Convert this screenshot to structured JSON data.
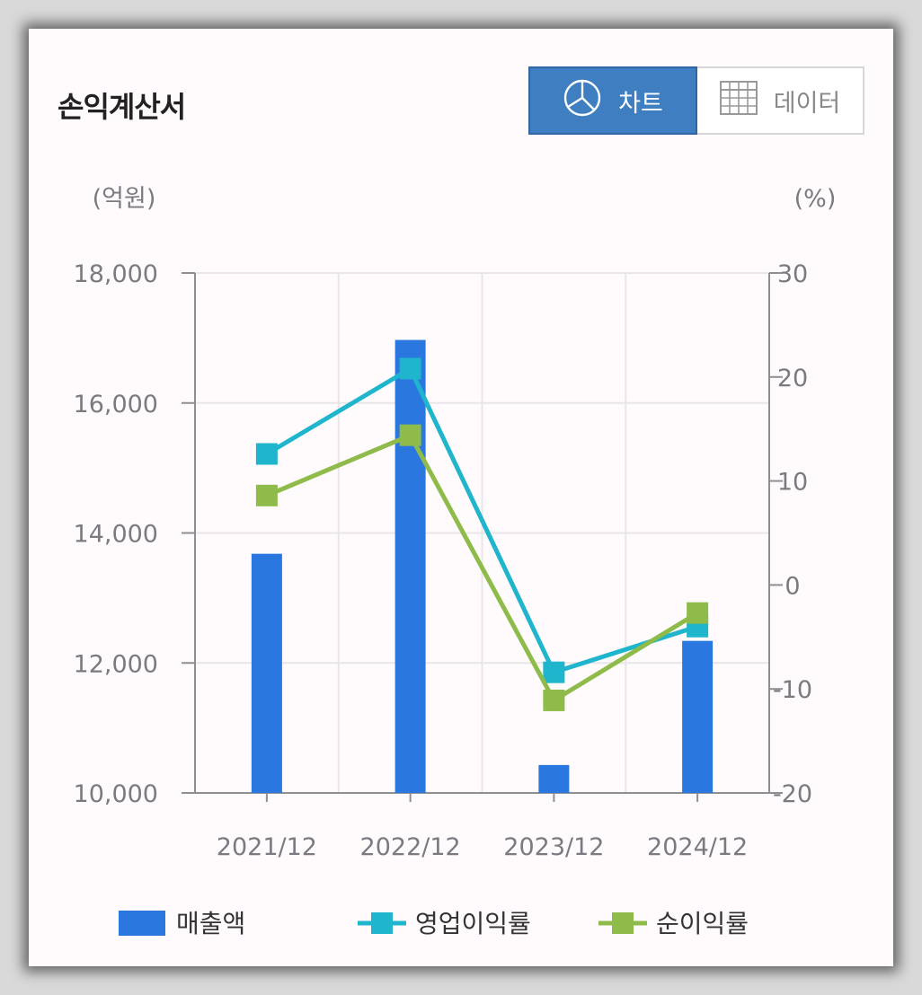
{
  "header": {
    "title": "손익계산서"
  },
  "toggle": {
    "chart_label": "차트",
    "data_label": "데이터"
  },
  "colors": {
    "revenue": "#2a78df",
    "operating_margin": "#1fb5cc",
    "net_margin": "#8fbb4a",
    "toggle_active": "#3f7fc1"
  },
  "chart_data": {
    "type": "bar",
    "categories": [
      "2021/12",
      "2022/12",
      "2023/12",
      "2024/12"
    ],
    "left_axis": {
      "unit_label": "(억원)",
      "ylim": [
        10000,
        18000
      ],
      "ticks": [
        10000,
        12000,
        14000,
        16000,
        18000
      ],
      "tick_labels": [
        "10,000",
        "12,000",
        "14,000",
        "16,000",
        "18,000"
      ]
    },
    "right_axis": {
      "unit_label": "(%)",
      "ylim": [
        -20,
        30
      ],
      "ticks": [
        -20,
        -10,
        0,
        10,
        20,
        30
      ],
      "tick_labels": [
        "-20",
        "-10",
        "0",
        "10",
        "20",
        "30"
      ]
    },
    "grid": true,
    "legend_position": "bottom",
    "series": [
      {
        "name": "매출액",
        "type": "bar",
        "axis": "left",
        "values": [
          13680,
          16970,
          10430,
          12340
        ]
      },
      {
        "name": "영업이익률",
        "type": "line",
        "axis": "right",
        "values": [
          12.6,
          20.8,
          -8.4,
          -4.0
        ]
      },
      {
        "name": "순이익률",
        "type": "line",
        "axis": "right",
        "values": [
          8.6,
          14.4,
          -11.1,
          -2.7
        ]
      }
    ]
  }
}
